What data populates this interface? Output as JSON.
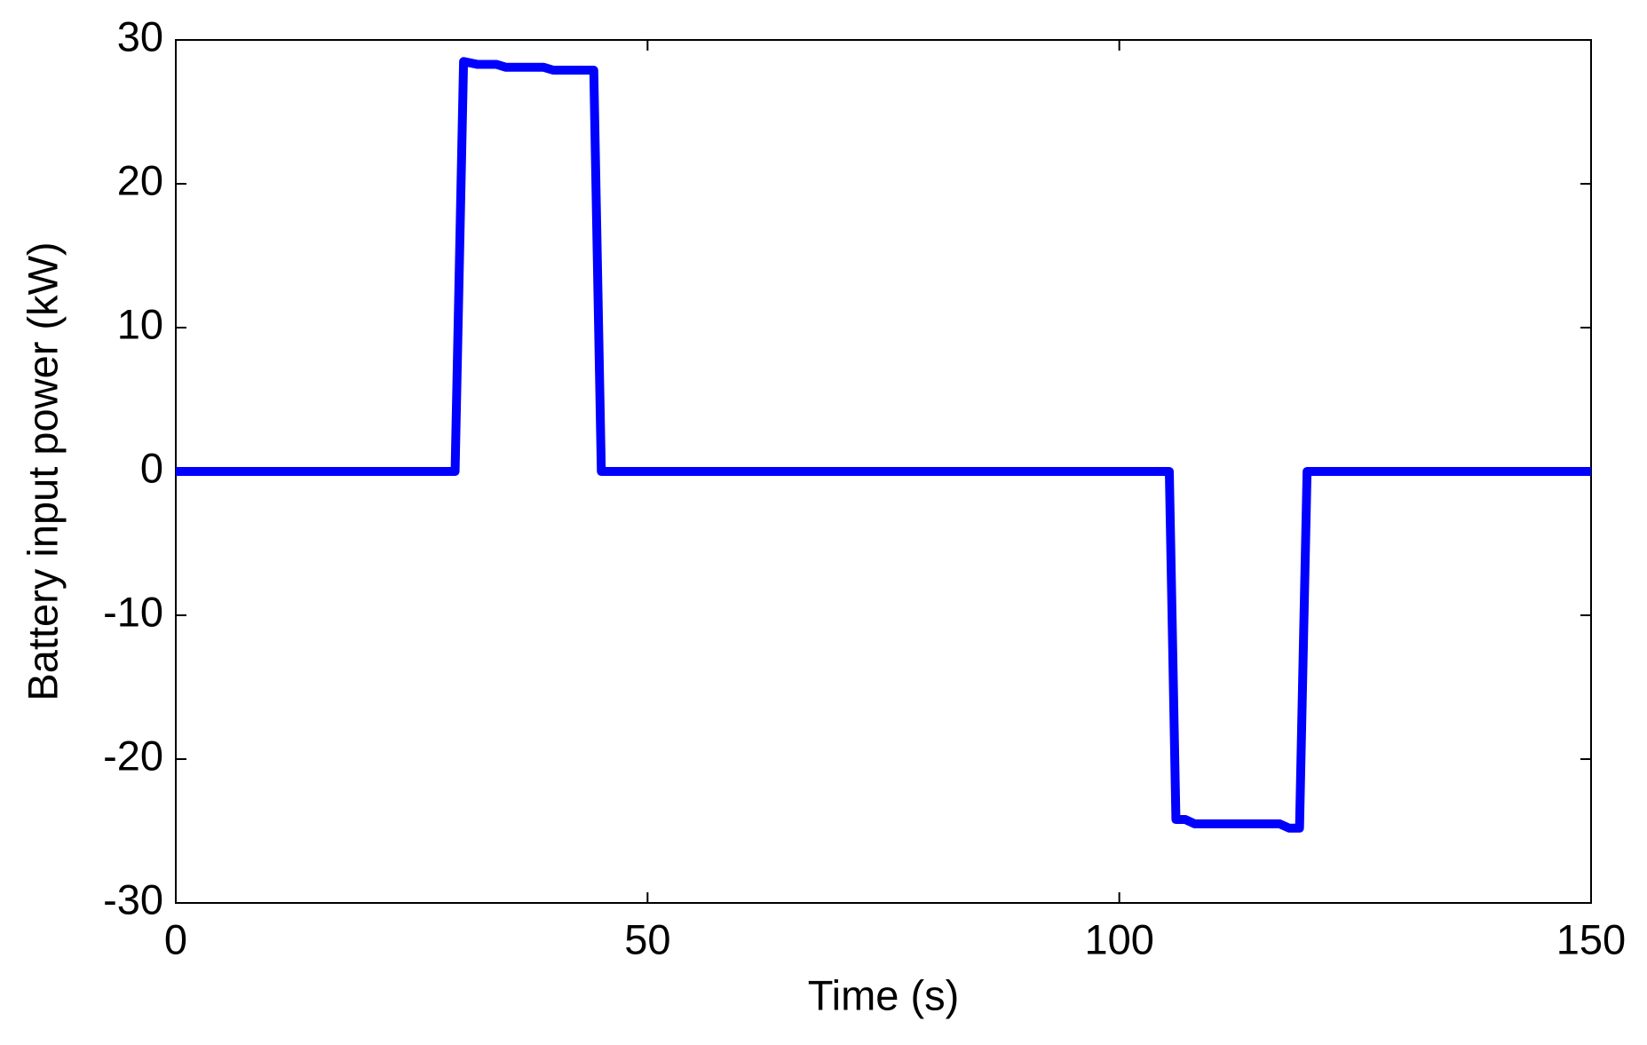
{
  "chart_data": {
    "type": "line",
    "xlabel": "Time (s)",
    "ylabel": "Battery input power (kW)",
    "x": [
      0,
      29.6,
      30.5,
      32,
      34,
      35,
      39,
      40,
      44.3,
      45.1,
      105.3,
      106,
      107,
      108,
      117,
      118,
      119.1,
      119.9,
      150
    ],
    "values": [
      0,
      0,
      28.5,
      28.3,
      28.3,
      28.1,
      28.1,
      27.9,
      27.9,
      0,
      0,
      -24.2,
      -24.2,
      -24.5,
      -24.5,
      -24.8,
      -24.8,
      0,
      0
    ],
    "color": "#0000ff",
    "xlim": [
      0,
      150
    ],
    "xticks": [
      0,
      50,
      100,
      150
    ],
    "ylim": [
      -30,
      30
    ],
    "yticks": [
      -30,
      -20,
      -10,
      0,
      10,
      20,
      30
    ],
    "grid": false
  }
}
